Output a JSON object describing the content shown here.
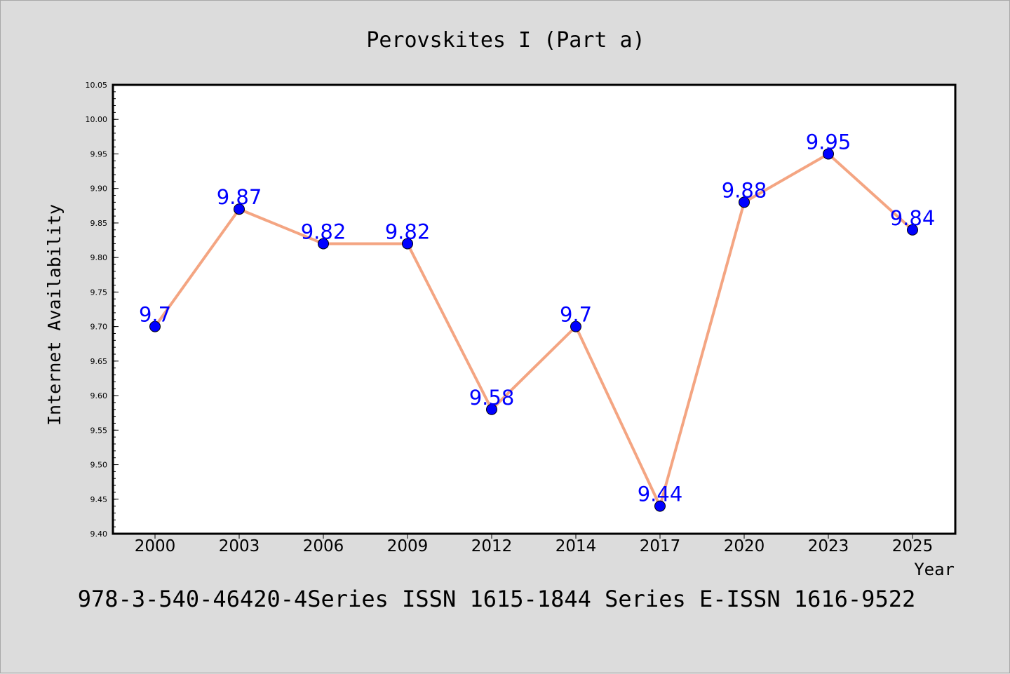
{
  "chart_data": {
    "type": "line",
    "title": "Perovskites I (Part a)",
    "xlabel": "Year",
    "ylabel": "Internet Availability",
    "categories": [
      "2000",
      "2003",
      "2006",
      "2009",
      "2012",
      "2014",
      "2017",
      "2020",
      "2023",
      "2025"
    ],
    "series": [
      {
        "values": [
          9.7,
          9.87,
          9.82,
          9.82,
          9.58,
          9.7,
          9.44,
          9.88,
          9.95,
          9.84
        ],
        "data_labels": [
          "9.7",
          "9.87",
          "9.82",
          "9.82",
          "9.58",
          "9.7",
          "9.44",
          "9.88",
          "9.95",
          "9.84"
        ],
        "line_color": "#f4a582",
        "marker_color": "#0000ff"
      }
    ],
    "ylim": [
      9.4,
      10.05
    ],
    "yticks": [
      "9.40",
      "9.45",
      "9.50",
      "9.55",
      "9.60",
      "9.65",
      "9.70",
      "9.75",
      "9.80",
      "9.85",
      "9.90",
      "9.95",
      "10.00",
      "10.05"
    ],
    "grid": false,
    "legend": "none",
    "label_color": "#0000ff",
    "footer": "978-3-540-46420-4Series ISSN 1615-1844 Series E-ISSN 1616-9522"
  }
}
